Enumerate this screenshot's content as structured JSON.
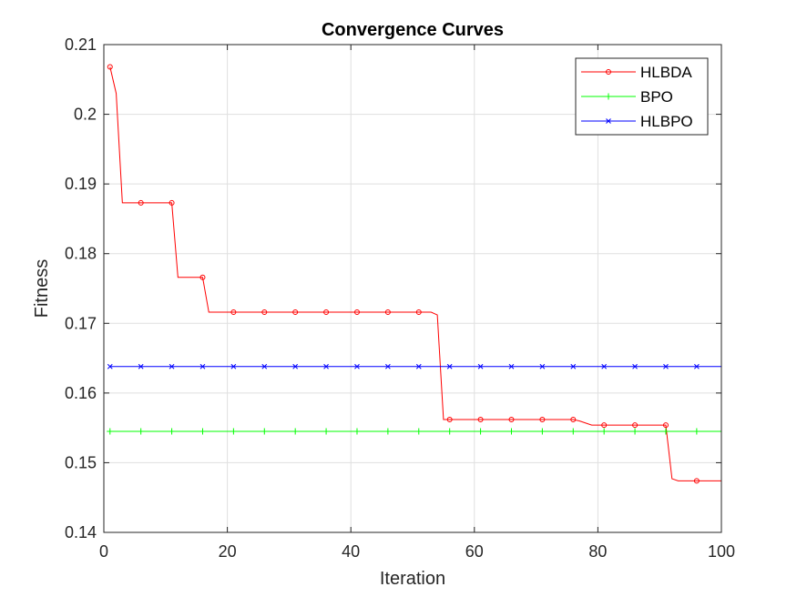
{
  "chart_data": {
    "type": "line",
    "title": "Convergence Curves",
    "xlabel": "Iteration",
    "ylabel": "Fitness",
    "xlim": [
      0,
      100
    ],
    "ylim": [
      0.14,
      0.21
    ],
    "xticks": [
      0,
      20,
      40,
      60,
      80,
      100
    ],
    "xtick_labels": [
      "0",
      "20",
      "40",
      "60",
      "80",
      "100"
    ],
    "yticks": [
      0.14,
      0.15,
      0.16,
      0.17,
      0.18,
      0.19,
      0.2,
      0.21
    ],
    "ytick_labels": [
      "0.14",
      "0.15",
      "0.16",
      "0.17",
      "0.18",
      "0.19",
      "0.2",
      "0.21"
    ],
    "grid": true,
    "legend_position": "top-right",
    "series": [
      {
        "name": "HLBDA",
        "color": "#ff0000",
        "marker": "circle",
        "marker_x": [
          1,
          6,
          11,
          16,
          21,
          26,
          31,
          36,
          41,
          46,
          51,
          56,
          61,
          66,
          71,
          76,
          81,
          86,
          91,
          96
        ],
        "points": [
          [
            1,
            0.2068
          ],
          [
            2,
            0.203
          ],
          [
            3,
            0.1873
          ],
          [
            11,
            0.1873
          ],
          [
            12,
            0.1766
          ],
          [
            16,
            0.1766
          ],
          [
            17,
            0.1716
          ],
          [
            53,
            0.1716
          ],
          [
            54,
            0.1712
          ],
          [
            55,
            0.1562
          ],
          [
            76,
            0.1562
          ],
          [
            77,
            0.156
          ],
          [
            79,
            0.1554
          ],
          [
            91,
            0.1554
          ],
          [
            92,
            0.1477
          ],
          [
            93,
            0.1474
          ],
          [
            100,
            0.1474
          ]
        ]
      },
      {
        "name": "BPO",
        "color": "#00ff00",
        "marker": "plus",
        "marker_x": [
          1,
          6,
          11,
          16,
          21,
          26,
          31,
          36,
          41,
          46,
          51,
          56,
          61,
          66,
          71,
          76,
          81,
          86,
          91,
          96
        ],
        "points": [
          [
            1,
            0.1545
          ],
          [
            100,
            0.1545
          ]
        ]
      },
      {
        "name": "HLBPO",
        "color": "#0000ff",
        "marker": "x",
        "marker_x": [
          1,
          6,
          11,
          16,
          21,
          26,
          31,
          36,
          41,
          46,
          51,
          56,
          61,
          66,
          71,
          76,
          81,
          86,
          91,
          96
        ],
        "points": [
          [
            1,
            0.1638
          ],
          [
            100,
            0.1638
          ]
        ]
      }
    ]
  }
}
